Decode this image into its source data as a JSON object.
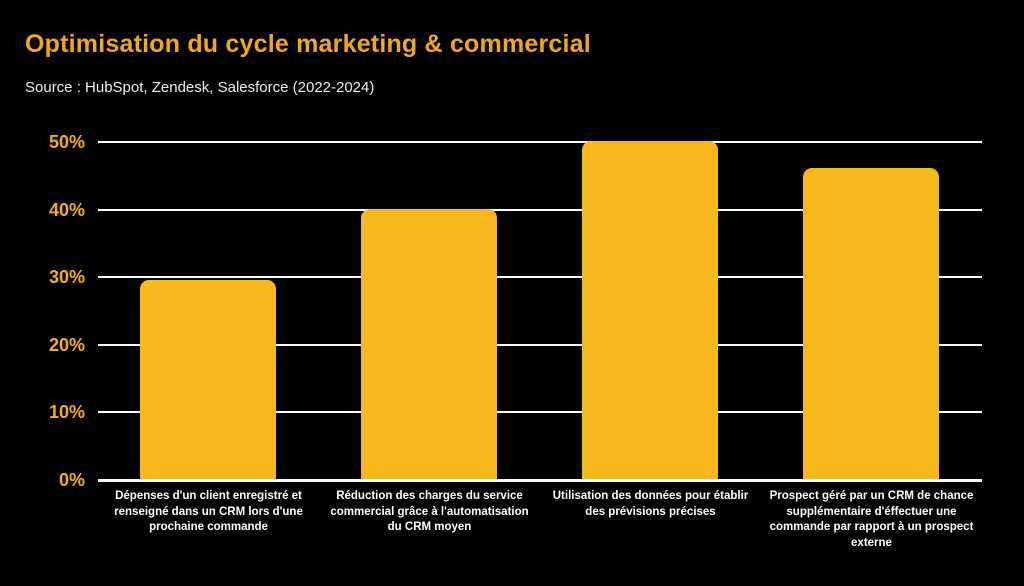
{
  "header": {
    "title": "Optimisation du cycle marketing & commercial",
    "source": "Source : HubSpot, Zendesk, Salesforce (2022-2024)"
  },
  "colors": {
    "background": "#000000",
    "title": "#F2A81C",
    "bar": "#F7B81E",
    "tick_label": "#F5AF1B",
    "gridline": "#FFFFFF",
    "axis_label": "#FFFFFF"
  },
  "chart_data": {
    "type": "bar",
    "title": "Optimisation du cycle marketing & commercial",
    "subtitle": "Source : HubSpot, Zendesk, Salesforce (2022-2024)",
    "categories": [
      "Dépenses d'un client enregistré et renseigné dans un CRM lors d'une prochaine commande",
      "Réduction des charges du service commercial grâce à l'automatisation du CRM moyen",
      "Utilisation des données pour établir des prévisions précises",
      "Prospect géré par un CRM de chance supplémentaire d'éffectuer une commande par rapport à un prospect externe"
    ],
    "values": [
      29.5,
      40,
      50,
      46
    ],
    "unit": "%",
    "xlabel": "",
    "ylabel": "",
    "ylim": [
      0,
      50
    ],
    "yticks": [
      "50%",
      "40%",
      "30%",
      "20%",
      "10%",
      "0%"
    ],
    "grid": "horizontal",
    "legend": "none",
    "bar_color": "#F7B81E"
  }
}
